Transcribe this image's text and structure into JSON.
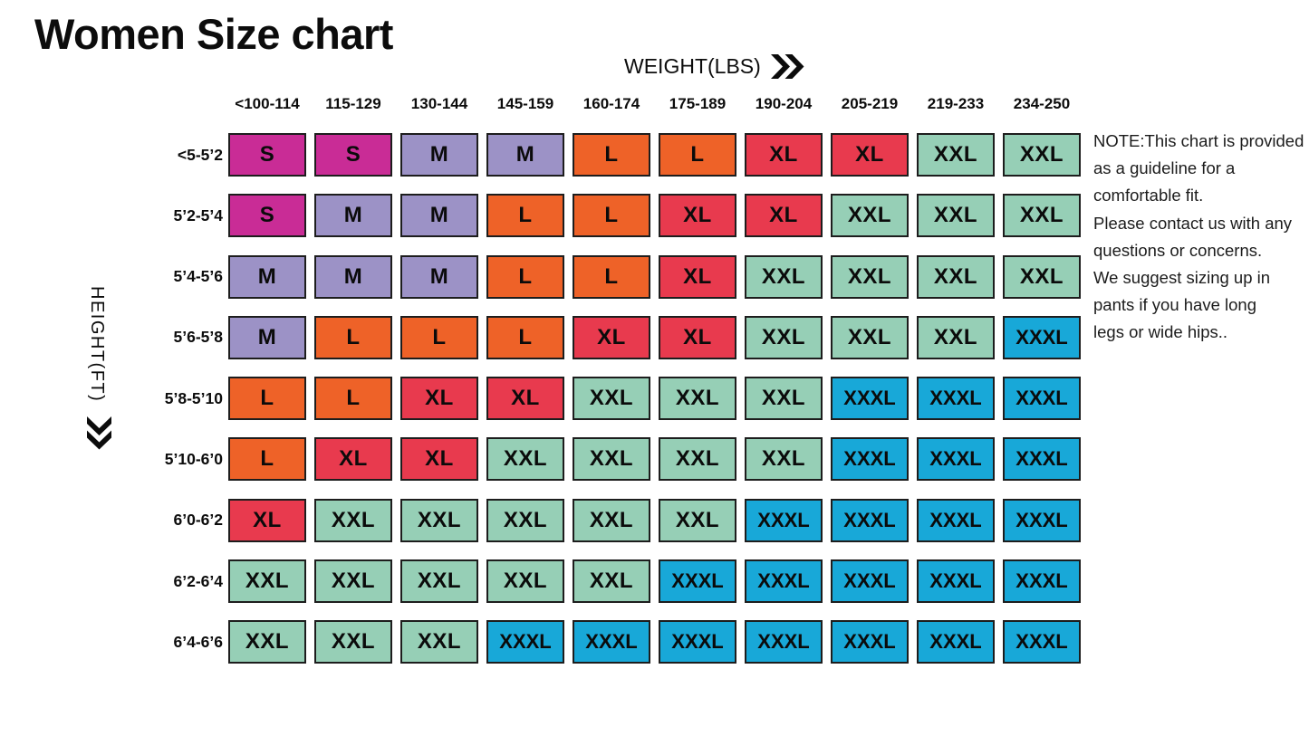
{
  "title": "Women Size chart",
  "axes": {
    "weight_label": "WEIGHT(LBS)",
    "height_label": "HEIGHT(FT)"
  },
  "note_lines": [
    "NOTE:This chart is provided",
    "as a guideline for a",
    "comfortable fit.",
    "Please contact us with any",
    "questions or concerns.",
    "We suggest sizing up in",
    "pants if you have long",
    "legs or wide hips.."
  ],
  "chart_data": {
    "type": "heatmap",
    "title": "Women Size chart",
    "xlabel": "WEIGHT(LBS)",
    "ylabel": "HEIGHT(FT)",
    "x_categories": [
      "<100-114",
      "115-129",
      "130-144",
      "145-159",
      "160-174",
      "175-189",
      "190-204",
      "205-219",
      "219-233",
      "234-250"
    ],
    "y_categories": [
      "<5-5’2",
      "5’2-5’4",
      "5’4-5’6",
      "5’6-5’8",
      "5’8-5’10",
      "5’10-6’0",
      "6’0-6’2",
      "6’2-6’4",
      "6’4-6’6"
    ],
    "values": [
      [
        "S",
        "S",
        "M",
        "M",
        "L",
        "L",
        "XL",
        "XL",
        "XXL",
        "XXL"
      ],
      [
        "S",
        "M",
        "M",
        "L",
        "L",
        "XL",
        "XL",
        "XXL",
        "XXL",
        "XXL"
      ],
      [
        "M",
        "M",
        "M",
        "L",
        "L",
        "XL",
        "XXL",
        "XXL",
        "XXL",
        "XXL"
      ],
      [
        "M",
        "L",
        "L",
        "L",
        "XL",
        "XL",
        "XXL",
        "XXL",
        "XXL",
        "XXXL"
      ],
      [
        "L",
        "L",
        "XL",
        "XL",
        "XXL",
        "XXL",
        "XXL",
        "XXXL",
        "XXXL",
        "XXXL"
      ],
      [
        "L",
        "XL",
        "XL",
        "XXL",
        "XXL",
        "XXL",
        "XXL",
        "XXXL",
        "XXXL",
        "XXXL"
      ],
      [
        "XL",
        "XXL",
        "XXL",
        "XXL",
        "XXL",
        "XXL",
        "XXXL",
        "XXXL",
        "XXXL",
        "XXXL"
      ],
      [
        "XXL",
        "XXL",
        "XXL",
        "XXL",
        "XXL",
        "XXXL",
        "XXXL",
        "XXXL",
        "XXXL",
        "XXXL"
      ],
      [
        "XXL",
        "XXL",
        "XXL",
        "XXXL",
        "XXXL",
        "XXXL",
        "XXXL",
        "XXXL",
        "XXXL",
        "XXXL"
      ]
    ],
    "legend_colors": {
      "S": "#C92C96",
      "M": "#9C92C6",
      "L": "#EE6228",
      "XL": "#E83A4E",
      "XXL": "#96CFB6",
      "XXXL": "#18A8D8"
    },
    "grid": false,
    "legend_position": "none"
  }
}
